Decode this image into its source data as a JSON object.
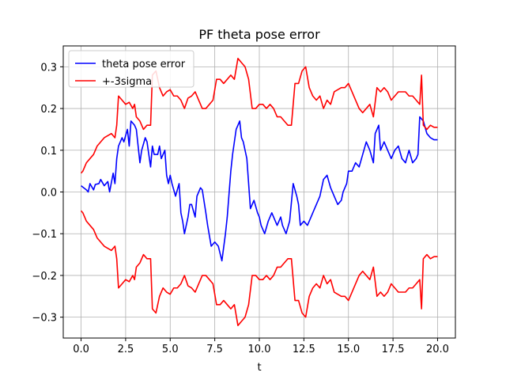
{
  "chart_data": {
    "type": "line",
    "title": "PF theta pose error",
    "xlabel": "t",
    "ylabel": "",
    "xlim": [
      -1.0,
      21.0
    ],
    "ylim": [
      -0.35,
      0.35
    ],
    "xticks": [
      0.0,
      2.5,
      5.0,
      7.5,
      10.0,
      12.5,
      15.0,
      17.5,
      20.0
    ],
    "xtick_labels": [
      "0.0",
      "2.5",
      "5.0",
      "7.5",
      "10.0",
      "12.5",
      "15.0",
      "17.5",
      "20.0"
    ],
    "yticks": [
      -0.3,
      -0.2,
      -0.1,
      0.0,
      0.1,
      0.2,
      0.3
    ],
    "ytick_labels": [
      "−0.3",
      "−0.2",
      "−0.1",
      "0.0",
      "0.1",
      "0.2",
      "0.3"
    ],
    "grid": true,
    "legend_position": "top-left",
    "series": [
      {
        "name": "theta pose error",
        "color": "#0000ff",
        "x": [
          0.0,
          0.3,
          0.4,
          0.5,
          0.7,
          0.8,
          1.0,
          1.1,
          1.3,
          1.5,
          1.6,
          1.8,
          1.9,
          2.0,
          2.1,
          2.3,
          2.4,
          2.6,
          2.7,
          2.8,
          3.0,
          3.1,
          3.3,
          3.4,
          3.6,
          3.7,
          3.9,
          4.0,
          4.1,
          4.3,
          4.4,
          4.5,
          4.7,
          4.8,
          4.9,
          5.0,
          5.1,
          5.3,
          5.5,
          5.6,
          5.7,
          5.8,
          6.0,
          6.1,
          6.2,
          6.4,
          6.5,
          6.7,
          6.8,
          7.0,
          7.1,
          7.3,
          7.5,
          7.7,
          7.9,
          8.1,
          8.2,
          8.4,
          8.5,
          8.7,
          8.8,
          8.9,
          9.0,
          9.1,
          9.3,
          9.4,
          9.5,
          9.7,
          9.9,
          10.0,
          10.1,
          10.3,
          10.5,
          10.7,
          10.9,
          11.0,
          11.2,
          11.3,
          11.5,
          11.7,
          11.9,
          12.1,
          12.2,
          12.3,
          12.5,
          12.7,
          12.9,
          13.0,
          13.2,
          13.4,
          13.6,
          13.8,
          14.0,
          14.2,
          14.4,
          14.6,
          14.7,
          14.9,
          15.0,
          15.2,
          15.4,
          15.6,
          15.8,
          16.0,
          16.2,
          16.4,
          16.5,
          16.7,
          16.8,
          17.0,
          17.2,
          17.4,
          17.6,
          17.8,
          18.0,
          18.2,
          18.4,
          18.6,
          18.8,
          18.9,
          19.0,
          19.2,
          19.4,
          19.6,
          19.8,
          20.0
        ],
        "y": [
          0.015,
          0.005,
          0.0,
          0.02,
          0.005,
          0.018,
          0.02,
          0.03,
          0.015,
          0.025,
          0.0,
          0.045,
          0.02,
          0.08,
          0.11,
          0.13,
          0.12,
          0.15,
          0.11,
          0.17,
          0.16,
          0.15,
          0.07,
          0.1,
          0.13,
          0.12,
          0.06,
          0.11,
          0.09,
          0.09,
          0.11,
          0.08,
          0.1,
          0.04,
          0.02,
          0.04,
          0.02,
          -0.01,
          0.02,
          -0.05,
          -0.07,
          -0.1,
          -0.06,
          -0.03,
          -0.03,
          -0.06,
          -0.01,
          0.01,
          0.005,
          -0.05,
          -0.08,
          -0.13,
          -0.12,
          -0.13,
          -0.165,
          -0.1,
          -0.06,
          0.05,
          0.09,
          0.15,
          0.16,
          0.17,
          0.13,
          0.12,
          0.08,
          0.02,
          -0.04,
          -0.02,
          -0.05,
          -0.06,
          -0.08,
          -0.1,
          -0.07,
          -0.05,
          -0.07,
          -0.08,
          -0.06,
          -0.08,
          -0.1,
          -0.07,
          0.02,
          -0.01,
          -0.03,
          -0.08,
          -0.07,
          -0.08,
          -0.06,
          -0.05,
          -0.03,
          -0.01,
          0.03,
          0.04,
          0.01,
          -0.01,
          -0.03,
          -0.02,
          0.0,
          0.02,
          0.05,
          0.05,
          0.07,
          0.06,
          0.09,
          0.12,
          0.1,
          0.07,
          0.14,
          0.16,
          0.1,
          0.12,
          0.1,
          0.08,
          0.1,
          0.11,
          0.08,
          0.07,
          0.1,
          0.07,
          0.08,
          0.09,
          0.18,
          0.17,
          0.14,
          0.13,
          0.125,
          0.125
        ]
      },
      {
        "name": "+-3sigma",
        "color": "#ff0000",
        "x": [
          0.0,
          0.1,
          0.3,
          0.5,
          0.7,
          0.9,
          1.1,
          1.3,
          1.5,
          1.7,
          1.9,
          2.0,
          2.1,
          2.3,
          2.5,
          2.7,
          2.9,
          3.0,
          3.1,
          3.3,
          3.5,
          3.7,
          3.9,
          4.0,
          4.2,
          4.4,
          4.6,
          4.8,
          5.0,
          5.2,
          5.4,
          5.6,
          5.8,
          6.0,
          6.2,
          6.4,
          6.6,
          6.8,
          7.0,
          7.2,
          7.4,
          7.6,
          7.8,
          8.0,
          8.2,
          8.4,
          8.6,
          8.8,
          9.0,
          9.2,
          9.4,
          9.6,
          9.8,
          10.0,
          10.2,
          10.4,
          10.6,
          10.8,
          11.0,
          11.2,
          11.4,
          11.6,
          11.8,
          12.0,
          12.2,
          12.4,
          12.6,
          12.8,
          13.0,
          13.2,
          13.4,
          13.6,
          13.8,
          14.0,
          14.2,
          14.4,
          14.6,
          14.8,
          15.0,
          15.2,
          15.4,
          15.6,
          15.8,
          16.0,
          16.2,
          16.4,
          16.6,
          16.8,
          17.0,
          17.2,
          17.4,
          17.6,
          17.8,
          18.0,
          18.2,
          18.4,
          18.6,
          18.8,
          19.0,
          19.1,
          19.2,
          19.4,
          19.6,
          19.8,
          20.0
        ],
        "y": [
          0.045,
          0.05,
          0.07,
          0.08,
          0.09,
          0.11,
          0.12,
          0.13,
          0.135,
          0.14,
          0.13,
          0.16,
          0.23,
          0.22,
          0.21,
          0.215,
          0.2,
          0.21,
          0.18,
          0.17,
          0.15,
          0.16,
          0.16,
          0.28,
          0.29,
          0.25,
          0.23,
          0.24,
          0.245,
          0.23,
          0.23,
          0.22,
          0.2,
          0.225,
          0.23,
          0.24,
          0.22,
          0.2,
          0.2,
          0.21,
          0.22,
          0.27,
          0.27,
          0.26,
          0.27,
          0.28,
          0.27,
          0.32,
          0.31,
          0.3,
          0.27,
          0.2,
          0.2,
          0.21,
          0.21,
          0.2,
          0.21,
          0.2,
          0.18,
          0.18,
          0.17,
          0.16,
          0.16,
          0.26,
          0.26,
          0.29,
          0.3,
          0.25,
          0.23,
          0.22,
          0.23,
          0.2,
          0.22,
          0.21,
          0.24,
          0.245,
          0.25,
          0.25,
          0.26,
          0.24,
          0.22,
          0.2,
          0.19,
          0.2,
          0.21,
          0.18,
          0.25,
          0.24,
          0.25,
          0.24,
          0.22,
          0.23,
          0.24,
          0.24,
          0.24,
          0.23,
          0.23,
          0.22,
          0.21,
          0.28,
          0.16,
          0.15,
          0.16,
          0.155,
          0.155
        ]
      }
    ]
  }
}
